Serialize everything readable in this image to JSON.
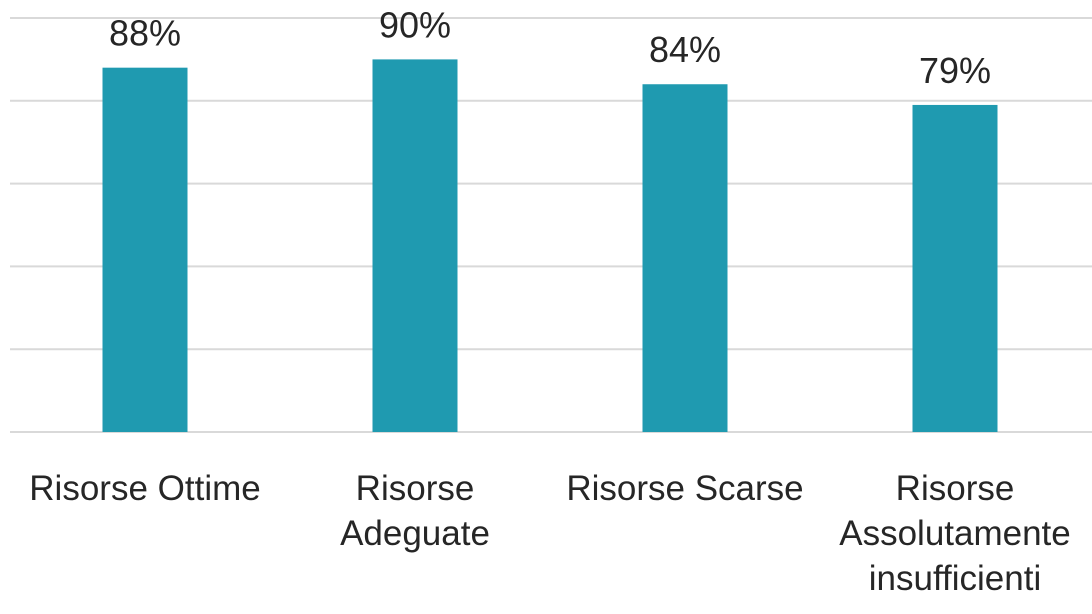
{
  "chart_data": {
    "type": "bar",
    "categories": [
      "Risorse Ottime",
      "Risorse Adeguate",
      "Risorse Scarse",
      "Risorse Assolutamente insufficienti"
    ],
    "category_lines": [
      [
        "Risorse Ottime"
      ],
      [
        "Risorse",
        "Adeguate"
      ],
      [
        "Risorse Scarse"
      ],
      [
        "Risorse",
        "Assolutamente",
        "insufficienti"
      ]
    ],
    "values": [
      88,
      90,
      84,
      79
    ],
    "value_labels": [
      "88%",
      "90%",
      "84%",
      "79%"
    ],
    "value_suffix": "%",
    "ylim": [
      0,
      100
    ],
    "grid": true,
    "legend": "none",
    "title": "",
    "xlabel": "",
    "ylabel": "",
    "colors": {
      "bar": "#1f9ab0",
      "grid": "#d9d9d9",
      "text": "#262626"
    }
  }
}
